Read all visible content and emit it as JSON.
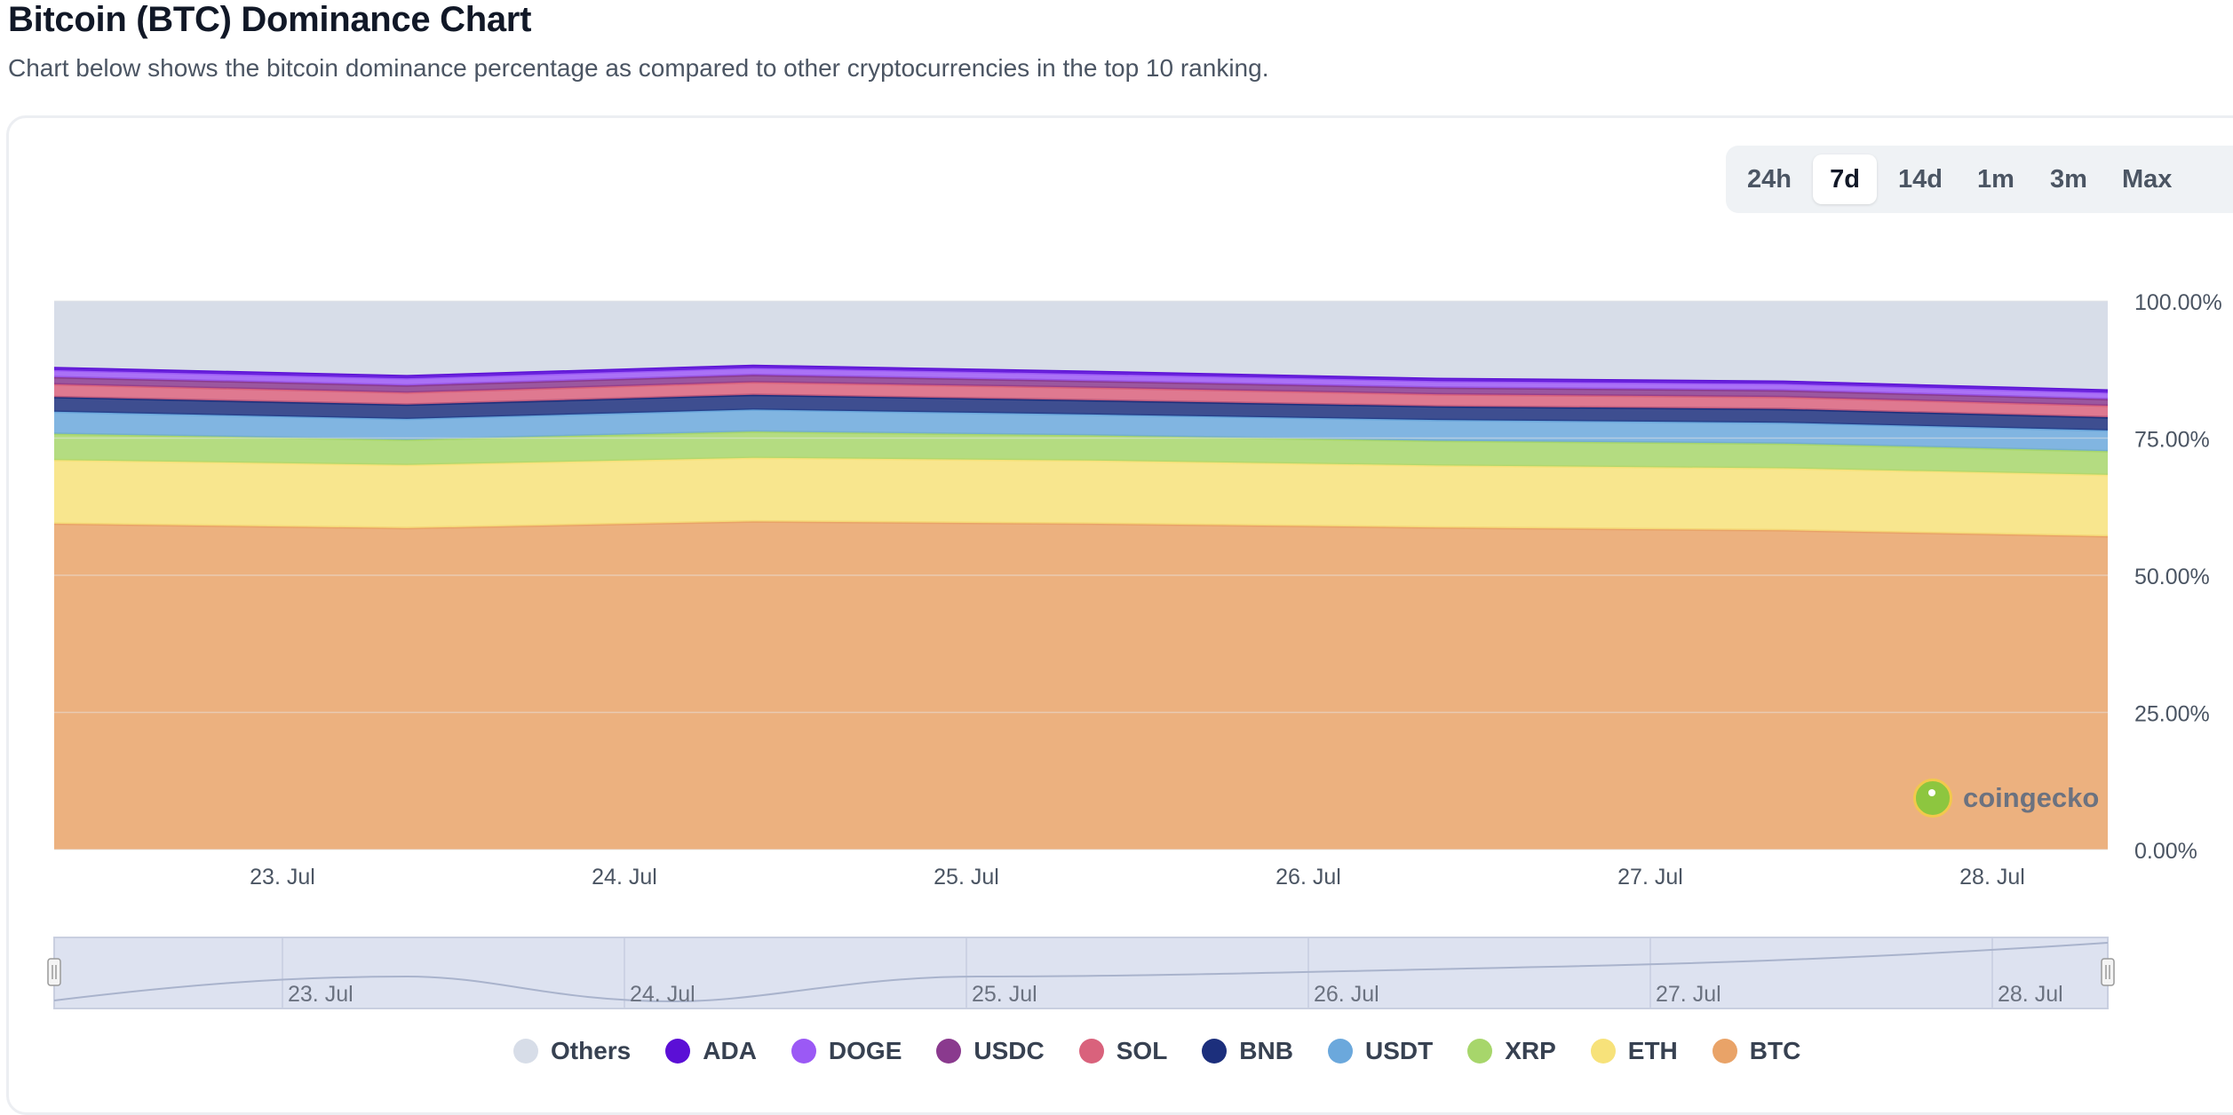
{
  "header": {
    "title": "Bitcoin (BTC) Dominance Chart",
    "subtitle": "Chart below shows the bitcoin dominance percentage as compared to other cryptocurrencies in the top 10 ranking."
  },
  "range_selector": {
    "options": [
      "24h",
      "7d",
      "14d",
      "1m",
      "3m",
      "Max"
    ],
    "selected": "7d"
  },
  "watermark": {
    "text": "coingecko"
  },
  "colors": {
    "Others": "#d7dde8",
    "ADA": "#5b0fd6",
    "DOGE": "#9b59f5",
    "USDC": "#8a3a8e",
    "SOL": "#d9627c",
    "BNB": "#1c2f7c",
    "USDT": "#6ba8dc",
    "XRP": "#a7d66b",
    "ETH": "#f7e27a",
    "BTC": "#e9a368"
  },
  "chart_data": {
    "type": "area",
    "stacked": true,
    "y_tick_labels": [
      "100.00%",
      "75.00%",
      "50.00%",
      "25.00%",
      "0.00%"
    ],
    "ylim": [
      0,
      100
    ],
    "x_tick_labels": [
      "23. Jul",
      "24. Jul",
      "25. Jul",
      "26. Jul",
      "27. Jul",
      "28. Jul"
    ],
    "x": [
      "22. Jul 10:00",
      "23. Jul 22:00",
      "24. Jul 10:00",
      "25. Jul 10:00",
      "26. Jul 10:00",
      "27. Jul 10:00",
      "28. Jul 10:00"
    ],
    "series": [
      {
        "name": "BTC",
        "values": [
          59.4,
          58.6,
          59.8,
          59.4,
          58.7,
          58.2,
          57.1
        ]
      },
      {
        "name": "ETH",
        "values": [
          11.6,
          11.5,
          11.6,
          11.5,
          11.3,
          11.3,
          11.2
        ]
      },
      {
        "name": "XRP",
        "values": [
          4.8,
          4.6,
          4.8,
          4.6,
          4.5,
          4.5,
          4.3
        ]
      },
      {
        "name": "USDT",
        "values": [
          4.0,
          3.8,
          4.0,
          3.8,
          3.8,
          3.8,
          3.8
        ]
      },
      {
        "name": "BNB",
        "values": [
          2.7,
          2.6,
          2.7,
          2.6,
          2.5,
          2.5,
          2.4
        ]
      },
      {
        "name": "SOL",
        "values": [
          2.3,
          2.2,
          2.3,
          2.3,
          2.2,
          2.2,
          2.1
        ]
      },
      {
        "name": "USDC",
        "values": [
          1.3,
          1.3,
          1.3,
          1.2,
          1.2,
          1.2,
          1.2
        ]
      },
      {
        "name": "DOGE",
        "values": [
          1.3,
          1.3,
          1.3,
          1.3,
          1.2,
          1.2,
          1.2
        ]
      },
      {
        "name": "ADA",
        "values": [
          0.6,
          0.6,
          0.6,
          0.6,
          0.6,
          0.6,
          0.6
        ]
      },
      {
        "name": "Others",
        "values": [
          12.0,
          13.5,
          11.6,
          12.7,
          14.0,
          14.5,
          16.1
        ]
      }
    ],
    "legend_order": [
      "Others",
      "ADA",
      "DOGE",
      "USDC",
      "SOL",
      "BNB",
      "USDT",
      "XRP",
      "ETH",
      "BTC"
    ],
    "legend_position": "bottom",
    "navigator": {
      "x_tick_labels": [
        "23. Jul",
        "24. Jul",
        "25. Jul",
        "26. Jul",
        "27. Jul",
        "28. Jul"
      ]
    }
  }
}
